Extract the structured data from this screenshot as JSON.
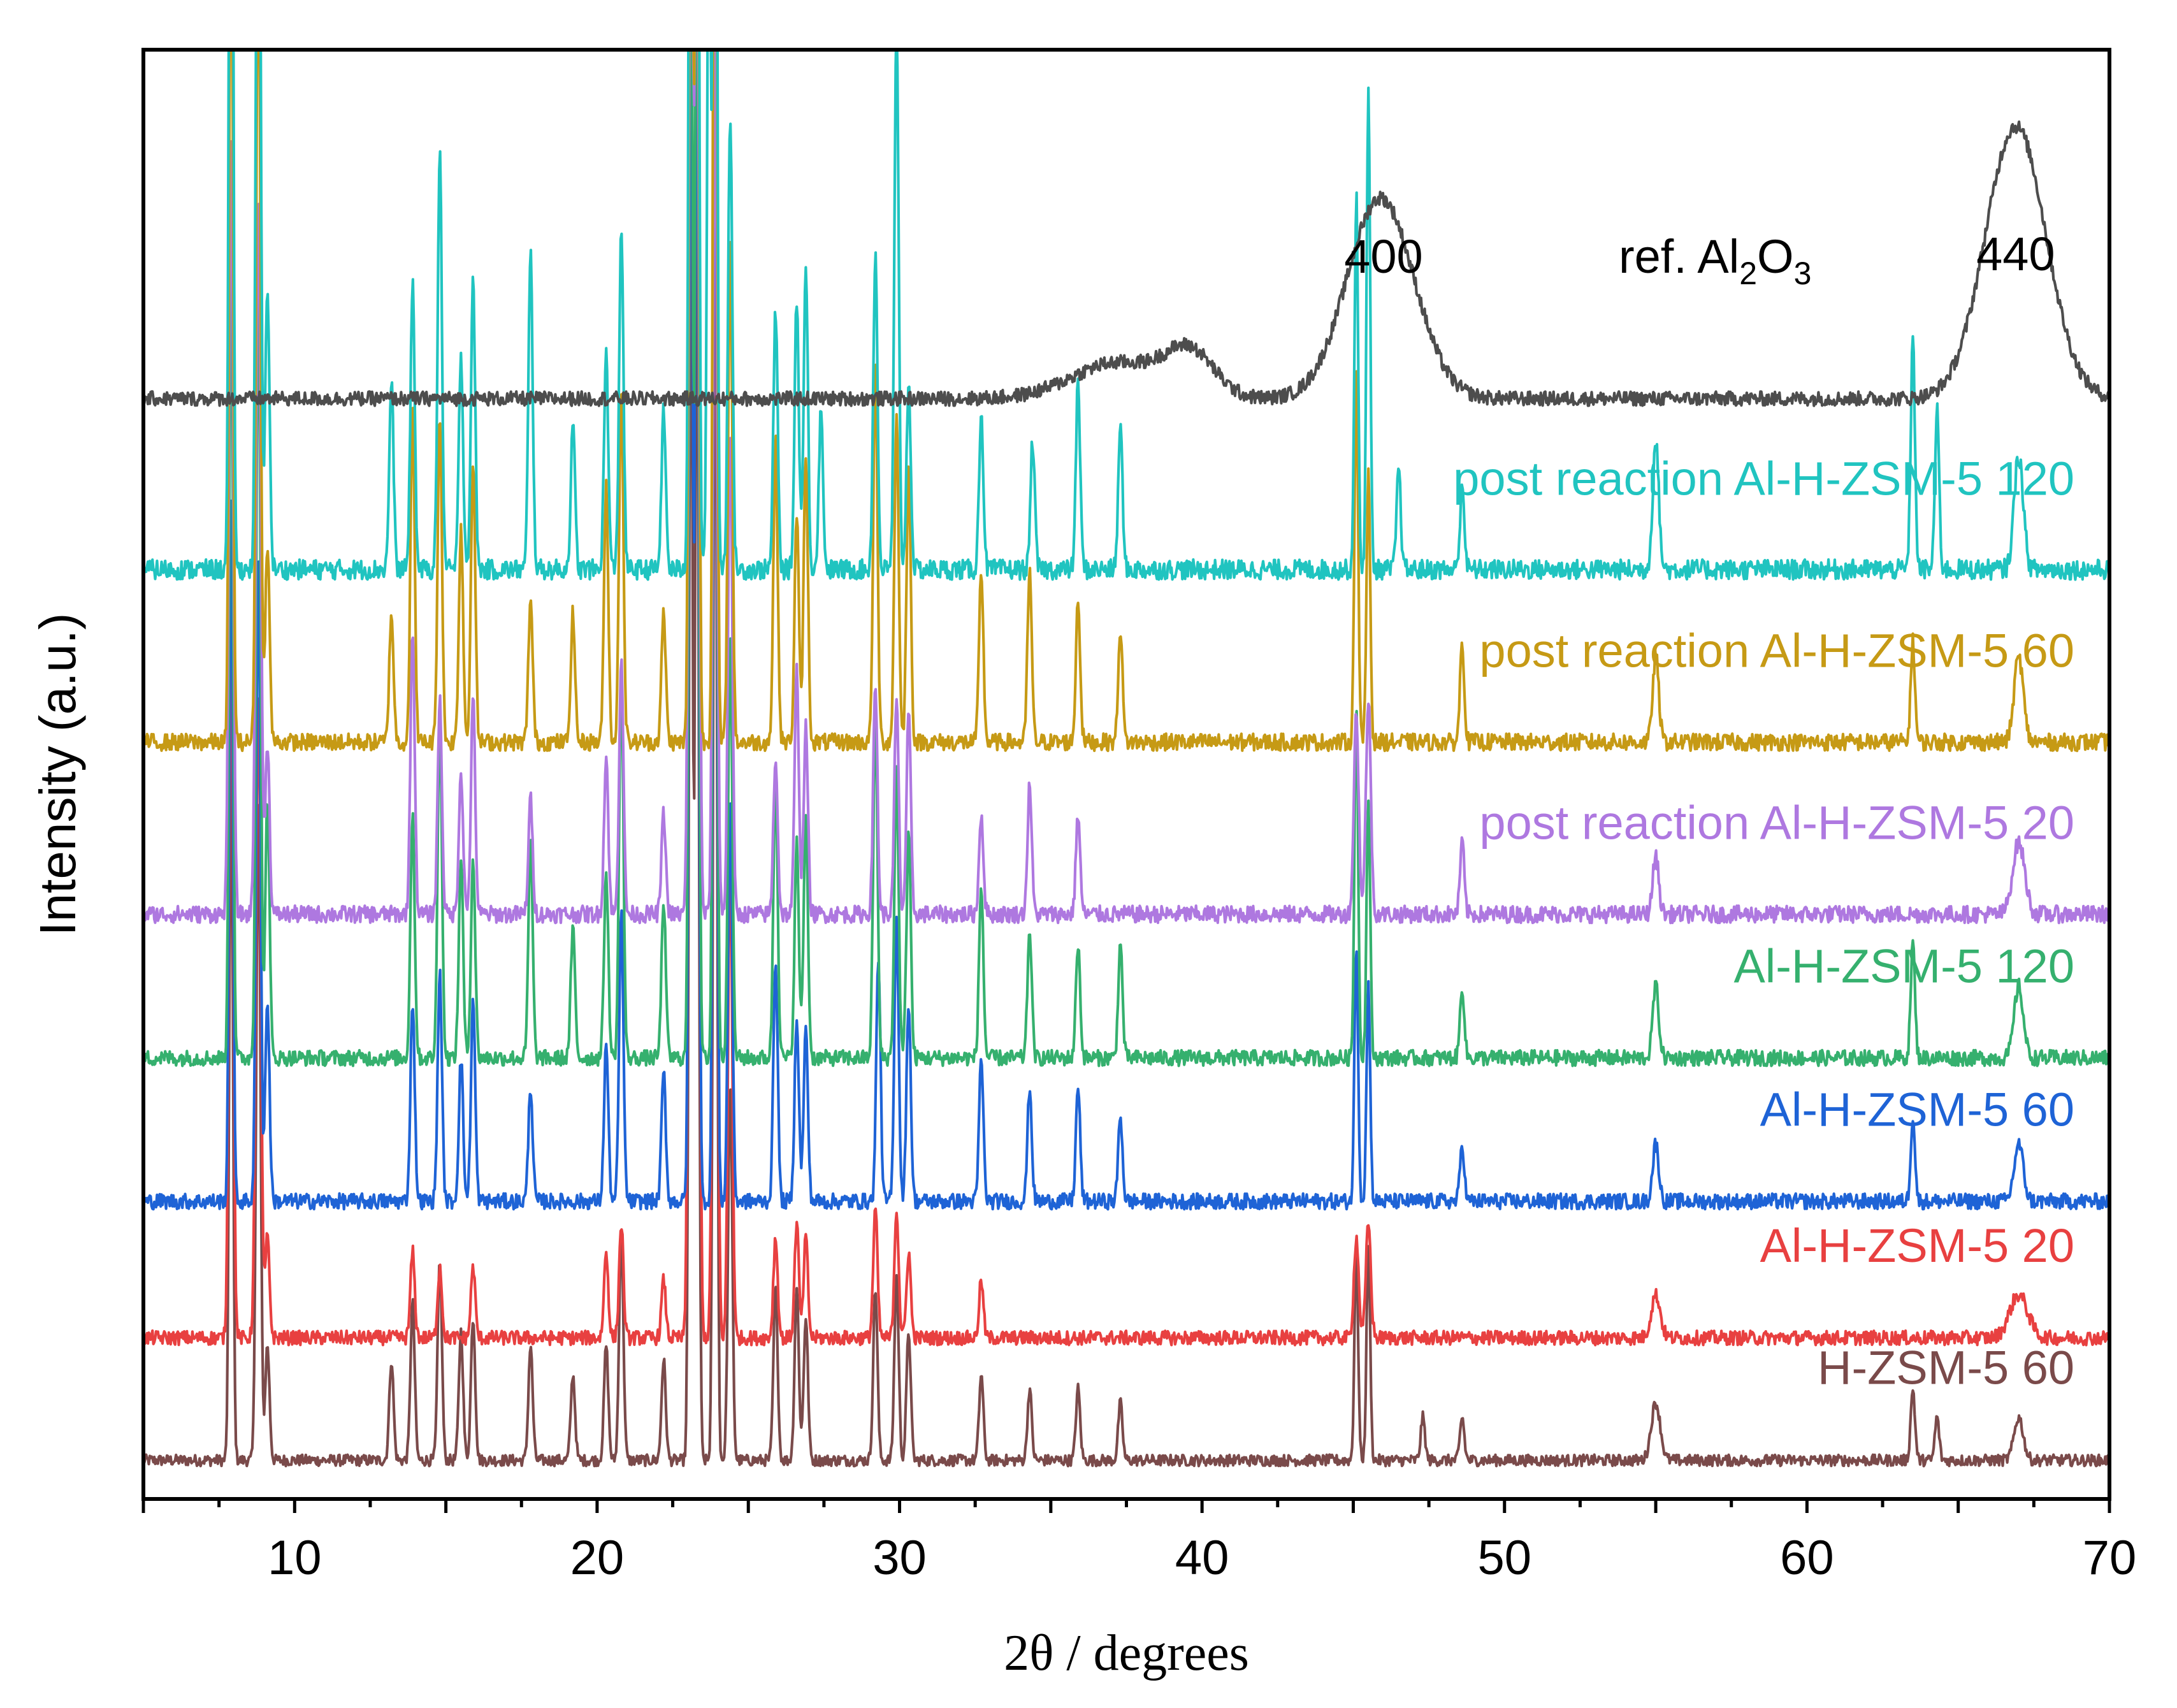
{
  "chart_data": {
    "type": "line",
    "title": "",
    "xlabel": "2θ / degrees",
    "ylabel": "Intensity (a.u.)",
    "xlim": [
      5,
      70
    ],
    "x_ticks": [
      10,
      20,
      30,
      40,
      50,
      60,
      70
    ],
    "x_tick_labels": [
      "10",
      "20",
      "30",
      "40",
      "50",
      "60",
      "70"
    ],
    "y_ticks": [],
    "grid": false,
    "legend": "labels placed at right end of each trace",
    "annotations": [
      {
        "text": "400",
        "x": 46.0
      },
      {
        "text": "440",
        "x": 66.9
      },
      {
        "text_parts": [
          "ref. Al",
          "2",
          "O",
          "3"
        ],
        "text": "ref. Al2O3"
      }
    ],
    "series": [
      {
        "name": "ref. Al2O3",
        "label": "",
        "color": "#4d4d4d",
        "offset": 7.4,
        "noise": 0.1,
        "peaks": [
          [
            37.2,
            0.25,
            1.5
          ],
          [
            39.6,
            0.3,
            0.8
          ],
          [
            45.9,
            1.4,
            1.1
          ],
          [
            66.9,
            1.9,
            1.0
          ]
        ]
      },
      {
        "name": "post reaction Al-H-ZSM-5 120",
        "label": "post reaction Al-H-ZSM-5 120",
        "color": "#20c4c0",
        "offset": 6.2,
        "noise": 0.14,
        "peaks": [
          [
            7.9,
            8.5,
            0.06
          ],
          [
            8.8,
            7.0,
            0.07
          ],
          [
            9.1,
            2.0,
            0.07
          ],
          [
            13.2,
            1.3,
            0.07
          ],
          [
            13.9,
            2.0,
            0.07
          ],
          [
            14.8,
            2.9,
            0.07
          ],
          [
            15.5,
            1.5,
            0.07
          ],
          [
            15.9,
            2.0,
            0.07
          ],
          [
            17.8,
            2.2,
            0.07
          ],
          [
            19.2,
            1.0,
            0.07
          ],
          [
            20.3,
            1.5,
            0.07
          ],
          [
            20.8,
            2.4,
            0.07
          ],
          [
            22.2,
            1.1,
            0.07
          ],
          [
            23.1,
            9.0,
            0.06
          ],
          [
            23.3,
            9.0,
            0.06
          ],
          [
            23.7,
            5.0,
            0.06
          ],
          [
            23.9,
            9.0,
            0.06
          ],
          [
            24.4,
            3.2,
            0.07
          ],
          [
            25.9,
            1.8,
            0.07
          ],
          [
            26.6,
            1.9,
            0.07
          ],
          [
            26.9,
            2.1,
            0.07
          ],
          [
            27.4,
            1.1,
            0.07
          ],
          [
            29.2,
            2.2,
            0.07
          ],
          [
            29.9,
            3.8,
            0.07
          ],
          [
            30.3,
            1.3,
            0.07
          ],
          [
            32.7,
            1.1,
            0.07
          ],
          [
            34.4,
            0.9,
            0.07
          ],
          [
            35.9,
            1.3,
            0.07
          ],
          [
            37.3,
            1.0,
            0.07
          ],
          [
            45.1,
            2.6,
            0.06
          ],
          [
            45.5,
            3.3,
            0.06
          ],
          [
            46.5,
            0.7,
            0.07
          ],
          [
            48.6,
            0.6,
            0.07
          ],
          [
            55.0,
            0.9,
            0.1
          ],
          [
            63.5,
            1.6,
            0.07
          ],
          [
            64.3,
            1.1,
            0.07
          ],
          [
            67.0,
            0.8,
            0.15
          ]
        ]
      },
      {
        "name": "post reaction Al-H-ZSM-5 60",
        "label": "post reaction Al-H-ZSM-5 60",
        "color": "#c69a15",
        "offset": 5.0,
        "noise": 0.12,
        "peaks": [
          [
            7.9,
            6.5,
            0.06
          ],
          [
            8.8,
            5.8,
            0.07
          ],
          [
            9.1,
            1.4,
            0.07
          ],
          [
            13.2,
            0.9,
            0.07
          ],
          [
            13.9,
            2.3,
            0.07
          ],
          [
            14.8,
            2.3,
            0.07
          ],
          [
            15.5,
            1.5,
            0.07
          ],
          [
            15.9,
            2.0,
            0.07
          ],
          [
            17.8,
            1.0,
            0.07
          ],
          [
            19.2,
            0.9,
            0.07
          ],
          [
            20.3,
            1.8,
            0.07
          ],
          [
            20.8,
            2.5,
            0.07
          ],
          [
            22.2,
            0.9,
            0.07
          ],
          [
            23.1,
            9.0,
            0.06
          ],
          [
            23.3,
            9.0,
            0.06
          ],
          [
            23.9,
            9.0,
            0.06
          ],
          [
            24.4,
            3.5,
            0.07
          ],
          [
            25.9,
            2.1,
            0.07
          ],
          [
            26.6,
            1.6,
            0.07
          ],
          [
            26.9,
            2.0,
            0.07
          ],
          [
            29.2,
            2.6,
            0.07
          ],
          [
            29.9,
            2.3,
            0.07
          ],
          [
            30.3,
            1.9,
            0.07
          ],
          [
            32.7,
            1.2,
            0.07
          ],
          [
            34.3,
            1.2,
            0.07
          ],
          [
            35.9,
            1.0,
            0.07
          ],
          [
            37.3,
            0.8,
            0.07
          ],
          [
            45.1,
            2.6,
            0.06
          ],
          [
            45.5,
            1.9,
            0.06
          ],
          [
            48.6,
            0.7,
            0.07
          ],
          [
            55.0,
            0.6,
            0.1
          ],
          [
            63.5,
            0.7,
            0.07
          ],
          [
            67.0,
            0.6,
            0.15
          ]
        ]
      },
      {
        "name": "post reaction Al-H-ZSM-5 20",
        "label": "post reaction Al-H-ZSM-5 20",
        "color": "#ae78e0",
        "offset": 3.8,
        "noise": 0.12,
        "peaks": [
          [
            7.9,
            5.5,
            0.07
          ],
          [
            8.8,
            5.0,
            0.08
          ],
          [
            9.1,
            1.2,
            0.07
          ],
          [
            13.9,
            2.0,
            0.07
          ],
          [
            14.8,
            1.5,
            0.07
          ],
          [
            15.5,
            1.0,
            0.07
          ],
          [
            15.9,
            1.5,
            0.07
          ],
          [
            17.8,
            0.8,
            0.07
          ],
          [
            20.3,
            1.1,
            0.07
          ],
          [
            20.8,
            1.8,
            0.07
          ],
          [
            22.2,
            0.7,
            0.07
          ],
          [
            23.1,
            8.0,
            0.07
          ],
          [
            23.3,
            7.5,
            0.07
          ],
          [
            23.9,
            6.0,
            0.07
          ],
          [
            24.4,
            3.4,
            0.07
          ],
          [
            25.9,
            1.1,
            0.07
          ],
          [
            26.6,
            1.7,
            0.07
          ],
          [
            26.9,
            1.3,
            0.07
          ],
          [
            29.2,
            1.6,
            0.07
          ],
          [
            29.9,
            1.5,
            0.07
          ],
          [
            30.3,
            1.4,
            0.07
          ],
          [
            32.7,
            0.7,
            0.07
          ],
          [
            34.3,
            0.9,
            0.07
          ],
          [
            35.9,
            0.7,
            0.07
          ],
          [
            45.1,
            1.4,
            0.08
          ],
          [
            45.5,
            1.5,
            0.08
          ],
          [
            48.6,
            0.5,
            0.07
          ],
          [
            55.0,
            0.4,
            0.1
          ],
          [
            67.0,
            0.5,
            0.2
          ]
        ]
      },
      {
        "name": "Al-H-ZSM-5 120",
        "label": "Al-H-ZSM-5 120",
        "color": "#35b06e",
        "offset": 2.8,
        "noise": 0.11,
        "peaks": [
          [
            7.9,
            6.0,
            0.06
          ],
          [
            8.8,
            5.5,
            0.07
          ],
          [
            9.1,
            1.8,
            0.07
          ],
          [
            13.9,
            1.7,
            0.07
          ],
          [
            14.8,
            2.4,
            0.07
          ],
          [
            15.5,
            1.4,
            0.07
          ],
          [
            15.9,
            1.4,
            0.07
          ],
          [
            17.8,
            1.5,
            0.07
          ],
          [
            19.2,
            0.9,
            0.07
          ],
          [
            20.3,
            1.3,
            0.07
          ],
          [
            20.8,
            2.7,
            0.07
          ],
          [
            22.2,
            1.1,
            0.07
          ],
          [
            23.1,
            9.0,
            0.06
          ],
          [
            23.3,
            9.0,
            0.06
          ],
          [
            23.9,
            9.0,
            0.06
          ],
          [
            24.4,
            2.9,
            0.07
          ],
          [
            25.9,
            2.0,
            0.07
          ],
          [
            26.6,
            1.5,
            0.07
          ],
          [
            26.9,
            1.7,
            0.07
          ],
          [
            29.2,
            2.4,
            0.07
          ],
          [
            29.9,
            2.0,
            0.07
          ],
          [
            30.3,
            1.6,
            0.07
          ],
          [
            32.7,
            1.2,
            0.07
          ],
          [
            34.3,
            0.9,
            0.07
          ],
          [
            35.9,
            0.8,
            0.07
          ],
          [
            37.3,
            0.8,
            0.07
          ],
          [
            45.1,
            2.5,
            0.06
          ],
          [
            45.5,
            1.8,
            0.06
          ],
          [
            48.6,
            0.5,
            0.07
          ],
          [
            55.0,
            0.5,
            0.1
          ],
          [
            63.5,
            0.8,
            0.07
          ],
          [
            67.0,
            0.5,
            0.15
          ]
        ]
      },
      {
        "name": "Al-H-ZSM-5 60",
        "label": "Al-H-ZSM-5 60",
        "color": "#1e63d6",
        "offset": 1.8,
        "noise": 0.11,
        "peaks": [
          [
            7.9,
            5.0,
            0.06
          ],
          [
            8.8,
            4.5,
            0.07
          ],
          [
            9.1,
            1.4,
            0.07
          ],
          [
            13.9,
            1.4,
            0.07
          ],
          [
            14.8,
            1.6,
            0.07
          ],
          [
            15.5,
            1.0,
            0.07
          ],
          [
            15.9,
            1.4,
            0.07
          ],
          [
            17.8,
            0.8,
            0.07
          ],
          [
            20.3,
            1.1,
            0.07
          ],
          [
            20.8,
            2.0,
            0.07
          ],
          [
            22.2,
            0.9,
            0.07
          ],
          [
            23.1,
            9.0,
            0.06
          ],
          [
            23.3,
            9.0,
            0.06
          ],
          [
            23.9,
            9.0,
            0.06
          ],
          [
            24.4,
            2.8,
            0.07
          ],
          [
            25.9,
            1.7,
            0.07
          ],
          [
            26.6,
            1.3,
            0.07
          ],
          [
            26.9,
            1.2,
            0.07
          ],
          [
            29.3,
            1.7,
            0.07
          ],
          [
            29.9,
            2.0,
            0.07
          ],
          [
            30.3,
            1.4,
            0.07
          ],
          [
            32.7,
            1.0,
            0.07
          ],
          [
            34.3,
            0.8,
            0.07
          ],
          [
            35.9,
            0.8,
            0.07
          ],
          [
            37.3,
            0.6,
            0.07
          ],
          [
            45.1,
            1.8,
            0.06
          ],
          [
            45.5,
            1.5,
            0.06
          ],
          [
            48.6,
            0.4,
            0.07
          ],
          [
            55.0,
            0.4,
            0.1
          ],
          [
            63.5,
            0.6,
            0.07
          ],
          [
            67.0,
            0.4,
            0.15
          ]
        ]
      },
      {
        "name": "Al-H-ZSM-5 20",
        "label": "Al-H-ZSM-5 20",
        "color": "#e84040",
        "offset": 0.85,
        "noise": 0.1,
        "peaks": [
          [
            7.9,
            5.0,
            0.07
          ],
          [
            8.8,
            4.5,
            0.08
          ],
          [
            9.1,
            0.7,
            0.07
          ],
          [
            13.9,
            0.6,
            0.07
          ],
          [
            14.8,
            0.5,
            0.07
          ],
          [
            15.9,
            0.5,
            0.07
          ],
          [
            20.3,
            0.6,
            0.07
          ],
          [
            20.8,
            0.8,
            0.07
          ],
          [
            22.2,
            0.4,
            0.07
          ],
          [
            23.1,
            9.0,
            0.07
          ],
          [
            23.3,
            9.0,
            0.07
          ],
          [
            23.9,
            8.0,
            0.07
          ],
          [
            24.4,
            3.4,
            0.07
          ],
          [
            25.9,
            0.7,
            0.07
          ],
          [
            26.6,
            0.8,
            0.07
          ],
          [
            26.9,
            0.7,
            0.07
          ],
          [
            29.2,
            0.9,
            0.07
          ],
          [
            29.9,
            0.9,
            0.07
          ],
          [
            30.3,
            0.6,
            0.07
          ],
          [
            32.7,
            0.4,
            0.07
          ],
          [
            45.1,
            0.7,
            0.08
          ],
          [
            45.5,
            0.8,
            0.08
          ],
          [
            55.0,
            0.3,
            0.15
          ],
          [
            67.0,
            0.3,
            0.3
          ]
        ]
      },
      {
        "name": "H-ZSM-5 60",
        "label": "H-ZSM-5 60",
        "color": "#7a4a4a",
        "offset": 0.0,
        "noise": 0.08,
        "peaks": [
          [
            7.9,
            5.0,
            0.06
          ],
          [
            8.8,
            4.6,
            0.07
          ],
          [
            9.1,
            0.8,
            0.07
          ],
          [
            13.2,
            0.7,
            0.07
          ],
          [
            13.9,
            1.1,
            0.07
          ],
          [
            14.8,
            1.4,
            0.07
          ],
          [
            15.5,
            0.9,
            0.07
          ],
          [
            15.9,
            1.0,
            0.07
          ],
          [
            17.8,
            0.8,
            0.07
          ],
          [
            19.2,
            0.6,
            0.07
          ],
          [
            20.3,
            0.8,
            0.07
          ],
          [
            20.8,
            1.6,
            0.07
          ],
          [
            22.2,
            0.7,
            0.07
          ],
          [
            23.1,
            9.0,
            0.06
          ],
          [
            23.3,
            9.0,
            0.06
          ],
          [
            23.9,
            9.0,
            0.06
          ],
          [
            24.4,
            2.6,
            0.07
          ],
          [
            25.9,
            1.2,
            0.07
          ],
          [
            26.6,
            1.2,
            0.07
          ],
          [
            26.9,
            1.0,
            0.07
          ],
          [
            29.2,
            1.2,
            0.07
          ],
          [
            29.9,
            1.3,
            0.07
          ],
          [
            30.3,
            0.9,
            0.07
          ],
          [
            32.7,
            0.6,
            0.07
          ],
          [
            34.3,
            0.5,
            0.07
          ],
          [
            35.9,
            0.5,
            0.07
          ],
          [
            37.3,
            0.4,
            0.07
          ],
          [
            45.1,
            1.5,
            0.06
          ],
          [
            45.5,
            1.5,
            0.06
          ],
          [
            47.3,
            0.3,
            0.07
          ],
          [
            48.6,
            0.3,
            0.07
          ],
          [
            55.0,
            0.4,
            0.15
          ],
          [
            63.5,
            0.5,
            0.07
          ],
          [
            64.3,
            0.3,
            0.07
          ],
          [
            67.0,
            0.3,
            0.15
          ]
        ]
      }
    ]
  }
}
